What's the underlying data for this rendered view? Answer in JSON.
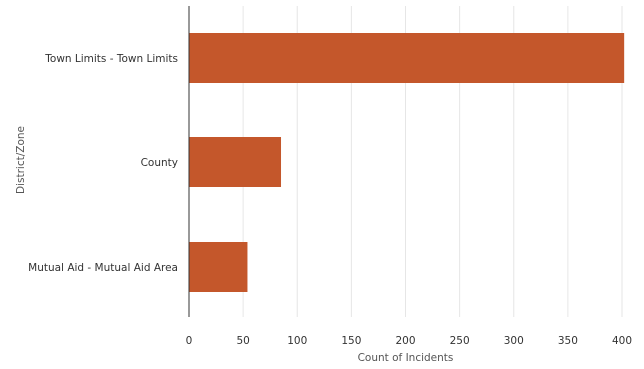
{
  "chart_data": {
    "type": "bar",
    "orientation": "horizontal",
    "categories": [
      "Town Limits - Town Limits",
      "County",
      "Mutual Aid - Mutual Aid Area"
    ],
    "series": [
      {
        "values": [
          402,
          85,
          54
        ]
      }
    ],
    "xlabel": "Count of Incidents",
    "ylabel": "District/Zone",
    "xlim": [
      0,
      400
    ],
    "xticks": [
      "0",
      "50",
      "100",
      "150",
      "200",
      "250",
      "300",
      "350",
      "400"
    ],
    "grid": "vertical",
    "legend": "none"
  },
  "colors": {
    "bar": "#c4572b",
    "grid": "#e6e6e6",
    "axis": "#333333"
  }
}
